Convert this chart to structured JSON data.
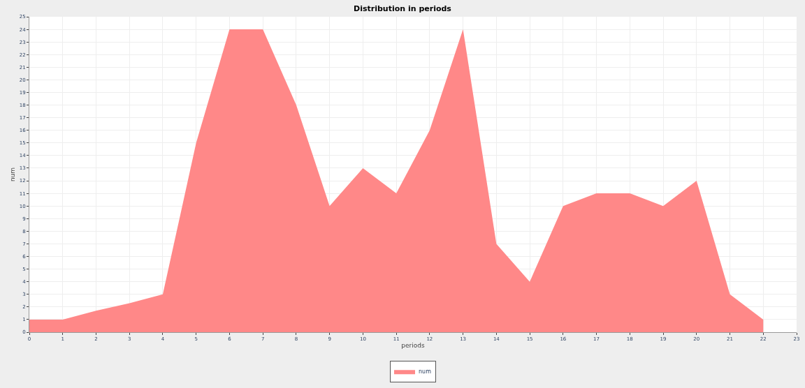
{
  "chart_data": {
    "type": "area",
    "title": "Distribution in periods",
    "xlabel": "periods",
    "ylabel": "num",
    "x": [
      0,
      1,
      2,
      3,
      4,
      5,
      6,
      7,
      8,
      9,
      10,
      11,
      12,
      13,
      14,
      15,
      16,
      17,
      18,
      19,
      20,
      21,
      22
    ],
    "series": [
      {
        "name": "num",
        "color": "#ff8888",
        "values": [
          1,
          1,
          1.7,
          2.3,
          3,
          15,
          24,
          24,
          18,
          10,
          13,
          11,
          16,
          24,
          7,
          4,
          10,
          11,
          11,
          10,
          12,
          3,
          1
        ]
      }
    ],
    "xlim": [
      0,
      23
    ],
    "xticks": [
      0,
      1,
      2,
      3,
      4,
      5,
      6,
      7,
      8,
      9,
      10,
      11,
      12,
      13,
      14,
      15,
      16,
      17,
      18,
      19,
      20,
      21,
      22,
      23
    ],
    "ylim": [
      0,
      25
    ],
    "yticks": [
      0,
      1,
      2,
      3,
      4,
      5,
      6,
      7,
      8,
      9,
      10,
      11,
      12,
      13,
      14,
      15,
      16,
      17,
      18,
      19,
      20,
      21,
      22,
      23,
      24,
      25
    ],
    "grid": true,
    "legend": "bottom"
  }
}
